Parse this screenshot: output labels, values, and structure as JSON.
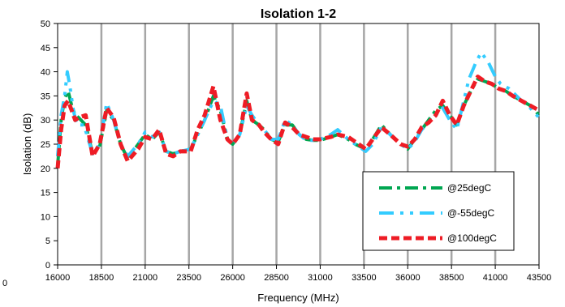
{
  "chart_data": {
    "type": "line",
    "title": "Isolation 1-2",
    "xlabel": "Frequency (MHz)",
    "ylabel": "Isolation (dB)",
    "xlim": [
      16000,
      43500
    ],
    "ylim": [
      0,
      50
    ],
    "x_ticks": [
      "16000",
      "18500",
      "21000",
      "23500",
      "26000",
      "28500",
      "31000",
      "33500",
      "36000",
      "38500",
      "41000",
      "43500"
    ],
    "y_ticks": [
      "0",
      "5",
      "10",
      "15",
      "20",
      "25",
      "30",
      "35",
      "40",
      "45",
      "50"
    ],
    "stray_label": "0",
    "grid": "vertical",
    "legend_position": "bottom-right",
    "series": [
      {
        "name": "@25degC",
        "color": "#00a651",
        "dash": "dash-dot",
        "x": [
          16000,
          16200,
          16400,
          16600,
          16800,
          17000,
          17200,
          17600,
          18000,
          18400,
          18800,
          19200,
          19600,
          20000,
          20600,
          21000,
          21400,
          21800,
          22200,
          22600,
          23000,
          23600,
          24000,
          24400,
          24900,
          25300,
          25700,
          26000,
          26400,
          26800,
          27100,
          27500,
          27800,
          28200,
          28600,
          29000,
          29400,
          29800,
          30200,
          30600,
          31000,
          31600,
          32000,
          32600,
          33000,
          33600,
          34000,
          34500,
          35000,
          35600,
          36000,
          36400,
          36800,
          37200,
          37600,
          38000,
          38400,
          38800,
          39200,
          39600,
          40000,
          40400,
          40800,
          41200,
          41600,
          42000,
          42500,
          43000,
          43500
        ],
        "y": [
          20.5,
          30,
          34.5,
          36,
          33,
          31,
          30.5,
          29,
          23,
          24.5,
          32,
          30,
          25,
          22,
          25,
          27,
          26,
          27.5,
          23.5,
          23,
          23.5,
          24,
          27,
          30,
          35,
          32,
          26,
          25,
          27,
          34,
          30,
          29,
          28,
          26,
          25.5,
          29,
          29,
          27,
          26,
          25.8,
          25.8,
          26.5,
          27,
          26,
          25,
          24,
          26,
          29,
          27,
          25,
          24,
          26,
          28,
          30,
          32,
          33,
          31,
          29,
          33,
          36,
          38.5,
          38,
          37.5,
          36.5,
          36,
          35,
          34,
          33,
          31
        ]
      },
      {
        "name": "@-55degC",
        "color": "#33ccff",
        "dash": "dash-dot-dot",
        "x": [
          16000,
          16200,
          16400,
          16550,
          16700,
          16900,
          17100,
          17500,
          18000,
          18400,
          18800,
          19200,
          19600,
          20000,
          20600,
          21000,
          21400,
          21800,
          22200,
          22600,
          23000,
          23600,
          24000,
          24400,
          24900,
          25300,
          25700,
          26000,
          26400,
          26800,
          27100,
          27500,
          27800,
          28200,
          28600,
          29000,
          29400,
          29800,
          30200,
          30600,
          31000,
          31600,
          32000,
          32600,
          33000,
          33600,
          34000,
          34500,
          35000,
          35600,
          36000,
          36400,
          36800,
          37200,
          37600,
          38000,
          38400,
          38800,
          39200,
          39500,
          39900,
          40200,
          40600,
          41000,
          41300,
          41800,
          42500,
          43000,
          43500
        ],
        "y": [
          22.5,
          31,
          35,
          40,
          37,
          32,
          29,
          29,
          23,
          25,
          33.5,
          30,
          25,
          22.5,
          25,
          27.5,
          26.5,
          27.5,
          23.5,
          23,
          23.5,
          24,
          27,
          30,
          34,
          33,
          26,
          25,
          27,
          33,
          31,
          29,
          28,
          26,
          26,
          30,
          29,
          27,
          25.8,
          25.8,
          26,
          27,
          28,
          26,
          25,
          23.5,
          25,
          28.5,
          27,
          25,
          24,
          25.5,
          28,
          29.5,
          31,
          32.5,
          30,
          28,
          34,
          38.5,
          42,
          44,
          42,
          39,
          37.5,
          36.5,
          34,
          32.5,
          30.5
        ]
      },
      {
        "name": "@100degC",
        "color": "#ee1c25",
        "dash": "dash",
        "x": [
          16000,
          16200,
          16400,
          16600,
          16800,
          17000,
          17200,
          17600,
          18000,
          18400,
          18800,
          19200,
          19600,
          20000,
          20600,
          21000,
          21400,
          21800,
          22200,
          22600,
          23000,
          23600,
          24000,
          24400,
          24900,
          25300,
          25700,
          26000,
          26400,
          26800,
          27100,
          27500,
          27800,
          28200,
          28600,
          29000,
          29400,
          29800,
          30200,
          30600,
          31000,
          31600,
          32000,
          32600,
          33000,
          33600,
          34000,
          34500,
          35000,
          35600,
          36000,
          36400,
          36800,
          37200,
          37600,
          38000,
          38400,
          38800,
          39200,
          39600,
          40000,
          40400,
          40800,
          41200,
          41600,
          42000,
          42500,
          43000,
          43500
        ],
        "y": [
          20,
          28,
          33,
          34,
          32,
          30,
          30.5,
          31,
          22.5,
          25,
          32.5,
          30.5,
          25,
          21.5,
          24,
          26.5,
          26,
          28,
          23,
          22.5,
          23.5,
          23.5,
          28,
          31,
          37,
          30,
          26,
          25,
          27,
          35.5,
          30,
          29,
          27.5,
          26,
          25,
          29.5,
          28.5,
          27,
          26.5,
          26,
          26,
          26.5,
          27,
          26.5,
          25.5,
          24,
          26,
          28.5,
          27,
          25,
          24.5,
          26,
          28.5,
          29.5,
          31,
          34,
          31,
          29,
          33,
          36,
          39,
          38,
          37.5,
          36.5,
          36,
          35,
          34,
          33,
          32
        ]
      }
    ]
  }
}
